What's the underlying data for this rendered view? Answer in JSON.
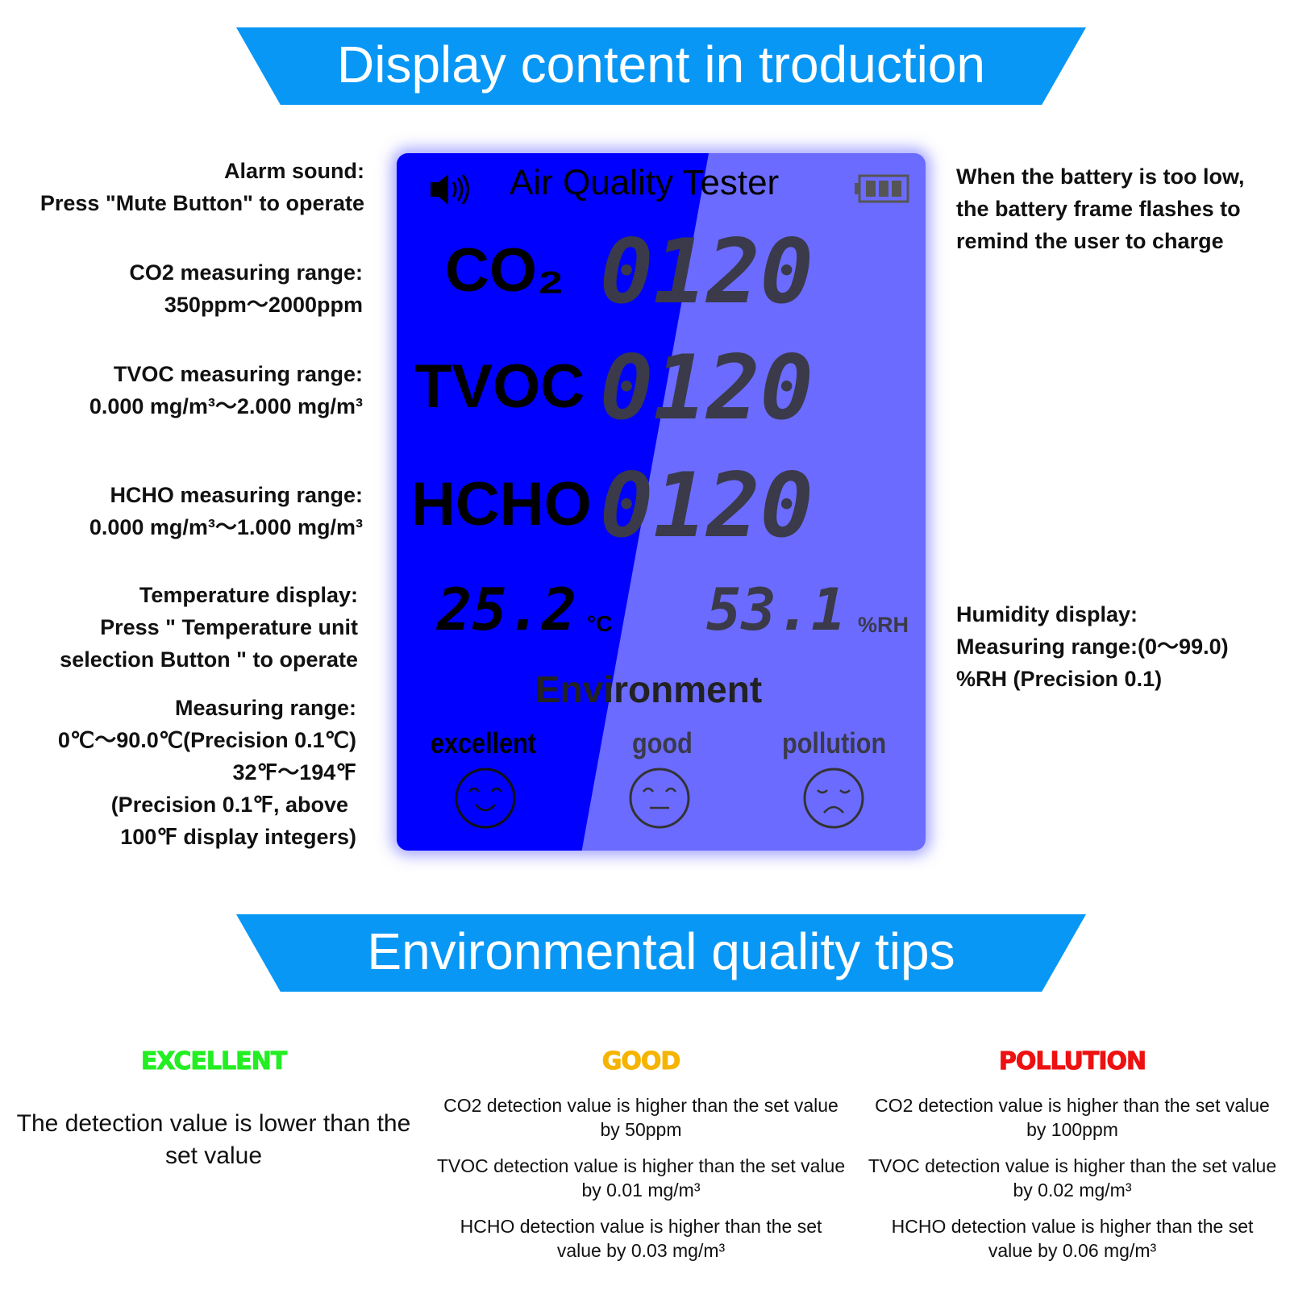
{
  "banner_top": "Display content in troduction",
  "banner_bottom": "Environmental quality tips",
  "left_annotations": [
    [
      "Alarm sound:",
      "Press \"Mute Button\" to operate"
    ],
    [
      "CO2 measuring range:",
      "350ppm～2000ppm"
    ],
    [
      "TVOC measuring range:",
      "0.000 mg/m³～2.000 mg/m³"
    ],
    [
      "HCHO measuring range:",
      "0.000 mg/m³～1.000 mg/m³"
    ],
    [
      "Temperature display:",
      "Press \" Temperature unit",
      "selection Button \" to operate"
    ],
    [
      "Measuring range:",
      "0℃～90.0℃(Precision 0.1℃)",
      "32℉～194℉",
      "(Precision 0.1℉, above",
      "100℉ display integers)"
    ]
  ],
  "right_annotations": [
    [
      "When the battery is too low,",
      "the battery frame flashes to",
      "remind the user to charge"
    ],
    [
      "Humidity display:",
      "Measuring range:(0～99.0)",
      "%RH (Precision 0.1)"
    ]
  ],
  "lcd": {
    "title": "Air Quality Tester",
    "co2_label": "CO₂",
    "tvoc_label": "TVOC",
    "hcho_label": "HCHO",
    "co2_value": "0120",
    "tvoc_value": "0120",
    "hcho_value": "0120",
    "temperature": "25.2",
    "temp_unit": "°C",
    "humidity": "53.1",
    "humidity_unit": "%RH",
    "environment": "Environment",
    "levels": [
      "excellent",
      "good",
      "pollution"
    ],
    "colors": {
      "backlight": "#0000ff",
      "panel": "#6b6bff"
    }
  },
  "tips": {
    "excellent": {
      "title": "EXCELLENT",
      "color": "#22ee22",
      "text": "The detection value is lower than the set value"
    },
    "good": {
      "title": "GOOD",
      "color": "#f5b400",
      "items": [
        "CO2 detection value is higher than the set value by 50ppm",
        "TVOC detection value is higher than the set value by 0.01 mg/m³",
        "HCHO detection value is higher than the set value by 0.03 mg/m³"
      ]
    },
    "pollution": {
      "title": "POLLUTION",
      "color": "#ee1111",
      "items": [
        "CO2 detection value is higher than the set value by 100ppm",
        "TVOC detection value is higher than the set value by 0.02 mg/m³",
        "HCHO detection value is higher than the set value by 0.06 mg/m³"
      ]
    }
  }
}
